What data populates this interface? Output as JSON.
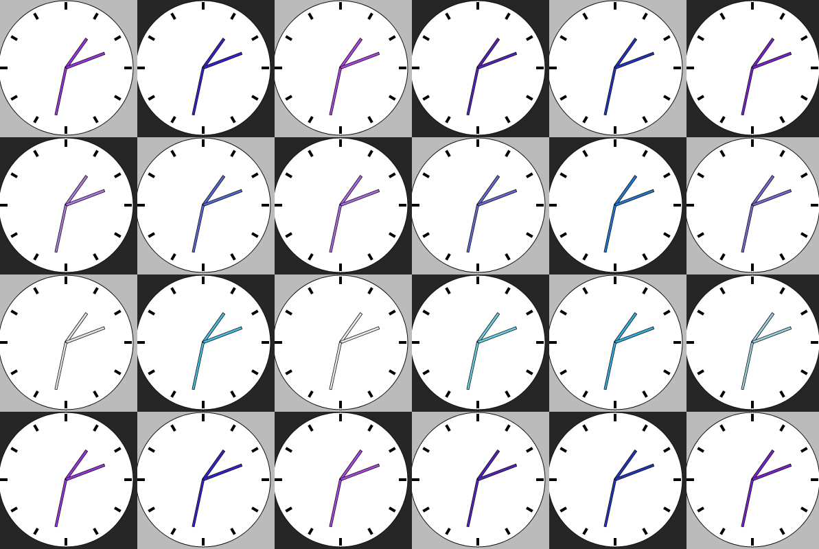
{
  "background_colors": {
    "light": "#bbbbbb",
    "dark": "#262626"
  },
  "clock_face_color": "#ffffff",
  "tick_color": "#000000",
  "clock": {
    "hour": 1,
    "minute": 11,
    "second": 32
  },
  "rows": [
    {
      "checker_start": "light",
      "hand_colors": [
        "#9933dd",
        "#3322cc",
        "#aa44dd",
        "#5522bb",
        "#2233bb",
        "#7722cc"
      ]
    },
    {
      "checker_start": "dark",
      "hand_colors": [
        "#aa77dd",
        "#5566cc",
        "#aa66dd",
        "#6666cc",
        "#2277cc",
        "#7766cc"
      ]
    },
    {
      "checker_start": "light",
      "hand_colors": [
        "#e0e0e0",
        "#44bbdd",
        "#e8e8e8",
        "#66ccdd",
        "#33aadd",
        "#99ccdd"
      ]
    },
    {
      "checker_start": "dark",
      "hand_colors": [
        "#9933dd",
        "#3322cc",
        "#aa44dd",
        "#5522bb",
        "#2233bb",
        "#7722cc"
      ]
    }
  ]
}
